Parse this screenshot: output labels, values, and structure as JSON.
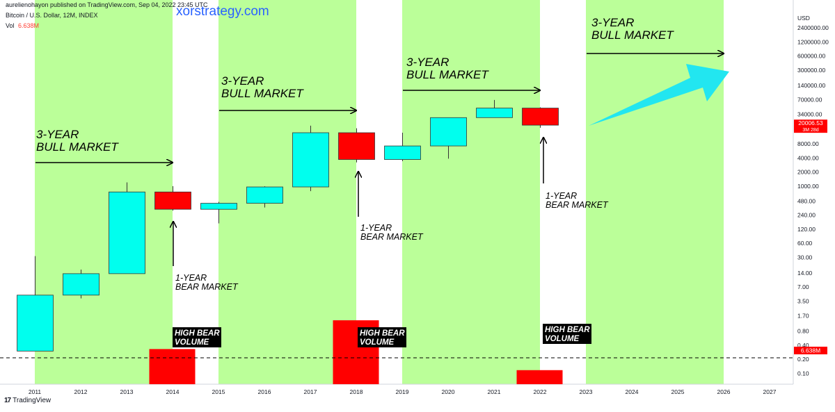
{
  "header": {
    "publisher_line": "aurelienohayon published on TradingView.com, Sep 04, 2022 23:45 UTC",
    "symbol_line": "Bitcoin / U.S. Dollar, 12M, INDEX",
    "vol_label": "Vol",
    "vol_value": "6.638M",
    "watermark": "xorstrategy.com"
  },
  "footer": {
    "brand": "TradingView"
  },
  "colors": {
    "bull_zone": "#bbff99",
    "up_candle": "#00ffee",
    "down_candle": "#ff0000",
    "volume": "#ff0000",
    "annotation": "#000000",
    "arrow_big": "#22e6f0",
    "price_tag": "#ff0000"
  },
  "chart_data": {
    "type": "candlestick",
    "title": "Bitcoin / U.S. Dollar, 12M, INDEX",
    "y_scale": "log",
    "y_unit_label": "USD",
    "y_tick_labels": [
      "2400000.00",
      "1200000.00",
      "600000.00",
      "300000.00",
      "140000.00",
      "70000.00",
      "34000.00",
      "16000.00",
      "8000.00",
      "4000.00",
      "2000.00",
      "1000.00",
      "480.00",
      "240.00",
      "120.00",
      "60.00",
      "30.00",
      "14.00",
      "7.00",
      "3.50",
      "1.70",
      "0.80",
      "0.40",
      "0.20",
      "0.10"
    ],
    "x_tick_labels": [
      "2011",
      "2012",
      "2013",
      "2014",
      "2015",
      "2016",
      "2017",
      "2018",
      "2019",
      "2020",
      "2021",
      "2022",
      "2023",
      "2024",
      "2025",
      "2026",
      "2027"
    ],
    "candles": [
      {
        "year": "2011",
        "open": 0.3,
        "high": 32,
        "low": 0.3,
        "close": 4.7
      },
      {
        "year": "2012",
        "open": 4.7,
        "high": 16.5,
        "low": 4.0,
        "close": 13.5
      },
      {
        "year": "2013",
        "open": 13.5,
        "high": 1200,
        "low": 13.5,
        "close": 750
      },
      {
        "year": "2014",
        "open": 750,
        "high": 1000,
        "low": 300,
        "close": 320
      },
      {
        "year": "2015",
        "open": 320,
        "high": 460,
        "low": 160,
        "close": 430
      },
      {
        "year": "2016",
        "open": 430,
        "high": 990,
        "low": 350,
        "close": 960
      },
      {
        "year": "2017",
        "open": 960,
        "high": 19500,
        "low": 780,
        "close": 13800
      },
      {
        "year": "2018",
        "open": 13800,
        "high": 17200,
        "low": 3200,
        "close": 3700
      },
      {
        "year": "2019",
        "open": 3700,
        "high": 13800,
        "low": 3400,
        "close": 7200
      },
      {
        "year": "2020",
        "open": 7200,
        "high": 29300,
        "low": 3850,
        "close": 29000
      },
      {
        "year": "2021",
        "open": 29000,
        "high": 69000,
        "low": 28800,
        "close": 46300
      },
      {
        "year": "2022",
        "open": 46300,
        "high": 48000,
        "low": 17600,
        "close": 20006.53
      }
    ],
    "volume": [
      {
        "year": "2014",
        "value": "high"
      },
      {
        "year": "2018",
        "value": "high"
      },
      {
        "year": "2022",
        "value": "6.638M"
      }
    ],
    "volume_bars_rel": [
      {
        "year": "2014",
        "value": 0.55
      },
      {
        "year": "2018",
        "value": 1.0
      },
      {
        "year": "2022",
        "value": 0.22
      }
    ],
    "last_price": "20006.53",
    "last_price_countdown": "3M 28d",
    "volume_tag": "6.638M",
    "bull_zones": [
      {
        "start": "2011",
        "end": "2014"
      },
      {
        "start": "2015",
        "end": "2018"
      },
      {
        "start": "2019",
        "end": "2022"
      },
      {
        "start": "2023",
        "end": "2026"
      }
    ],
    "annotations": {
      "bull_labels": [
        {
          "line1": "3-YEAR",
          "line2": "BULL MARKET"
        },
        {
          "line1": "3-YEAR",
          "line2": "BULL MARKET"
        },
        {
          "line1": "3-YEAR",
          "line2": "BULL MARKET"
        },
        {
          "line1": "3-YEAR",
          "line2": "BULL MARKET"
        }
      ],
      "bear_labels": [
        {
          "line1": "1-YEAR",
          "line2": "BEAR MARKET"
        },
        {
          "line1": "1-YEAR",
          "line2": "BEAR MARKET"
        },
        {
          "line1": "1-YEAR",
          "line2": "BEAR MARKET"
        }
      ],
      "volume_labels": [
        {
          "line1": "HIGH BEAR",
          "line2": "VOLUME"
        },
        {
          "line1": "HIGH BEAR",
          "line2": "VOLUME"
        },
        {
          "line1": "HIGH BEAR",
          "line2": "VOLUME"
        }
      ]
    }
  }
}
